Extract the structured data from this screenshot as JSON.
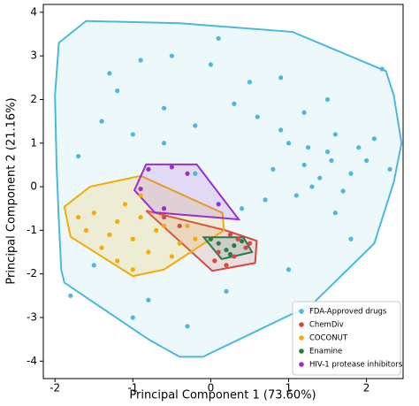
{
  "chart_data": {
    "type": "scatter",
    "xlabel": "Principal Component 1 (73.60%)",
    "ylabel": "Principal Component 2 (21.16%)",
    "xlim": [
      -2.15,
      2.47
    ],
    "ylim": [
      -4.4,
      4.18
    ],
    "xticks": [
      -2,
      -1,
      0,
      1,
      2
    ],
    "yticks": [
      -4,
      -3,
      -2,
      -1,
      0,
      1,
      2,
      3,
      4
    ],
    "legend": "lower right",
    "series": [
      {
        "name": "FDA-Approved drugs",
        "color": "#4cb8dc",
        "x": [
          1.2,
          1.5,
          1.8,
          1.0,
          1.3,
          1.6,
          2.0,
          0.8,
          1.1,
          1.4,
          1.7,
          2.1,
          0.9,
          1.25,
          1.55,
          1.9,
          0.6,
          0.3,
          -0.2,
          -0.6,
          -1.0,
          -1.4,
          -1.7,
          0.5,
          0.0,
          -0.5,
          -1.2,
          0.9,
          1.5,
          2.2,
          -0.8,
          -0.3,
          0.2,
          1.0,
          1.8,
          -1.5,
          -1.8,
          -1.0,
          0.4,
          1.2,
          -0.2,
          0.7,
          -0.9,
          1.6,
          2.3,
          -1.3,
          0.1,
          -0.6
        ],
        "y": [
          0.5,
          0.8,
          0.3,
          1.0,
          0.0,
          1.2,
          0.6,
          0.4,
          -0.2,
          0.2,
          -0.1,
          1.1,
          1.3,
          0.9,
          0.6,
          0.9,
          1.6,
          1.9,
          1.4,
          1.8,
          1.2,
          1.5,
          0.7,
          2.4,
          2.8,
          3.0,
          2.2,
          2.5,
          2.0,
          2.7,
          -2.6,
          -3.2,
          -2.4,
          -1.9,
          -1.2,
          -1.8,
          -2.5,
          -3.0,
          -0.5,
          1.7,
          0.3,
          -0.3,
          2.9,
          -0.6,
          0.4,
          2.6,
          3.4,
          1.0
        ],
        "hull": {
          "x": [
            -1.6,
            -1.95,
            -2.0,
            -1.98,
            -1.95,
            -1.92,
            -1.88,
            -0.8,
            -0.4,
            -0.1,
            1.3,
            2.1,
            2.35,
            2.45,
            2.35,
            2.25,
            1.05,
            -0.4
          ],
          "y": [
            3.8,
            3.3,
            2.1,
            0.5,
            -0.8,
            -1.9,
            -2.2,
            -3.5,
            -3.9,
            -3.9,
            -2.7,
            -1.3,
            0.1,
            1.0,
            2.1,
            2.65,
            3.55,
            3.75
          ]
        }
      },
      {
        "name": "ChemDiv",
        "color": "#d9473f",
        "x": [
          0.1,
          0.3,
          0.45,
          0.2,
          0.5,
          0.05,
          0.35,
          -0.4,
          -0.6,
          0.25
        ],
        "y": [
          -1.5,
          -1.6,
          -1.4,
          -1.8,
          -1.3,
          -1.7,
          -1.2,
          -0.9,
          -0.7,
          -1.1
        ],
        "hull": {
          "x": [
            -0.83,
            0.02,
            0.57,
            0.59,
            0.19
          ],
          "y": [
            -0.55,
            -1.93,
            -1.75,
            -1.24,
            -1.0
          ]
        }
      },
      {
        "name": "COCONUT",
        "color": "#f2ac0a",
        "x": [
          -1.5,
          -1.2,
          -0.9,
          -0.6,
          -1.3,
          -1.0,
          -0.7,
          -0.4,
          -1.6,
          -1.1,
          -0.8,
          -0.5,
          -0.2,
          -1.4,
          -0.9,
          -0.6,
          -1.2,
          -0.3,
          -1.7,
          -1.0
        ],
        "y": [
          -0.6,
          -0.8,
          -0.7,
          -0.9,
          -1.1,
          -1.2,
          -1.0,
          -1.3,
          -1.0,
          -0.4,
          -1.5,
          -1.6,
          -1.2,
          -1.4,
          -0.2,
          -0.5,
          -1.7,
          -0.9,
          -0.7,
          -1.9
        ],
        "hull": {
          "x": [
            -1.88,
            -1.8,
            -1.0,
            -0.6,
            0.17,
            0.15,
            -0.9,
            -1.55
          ],
          "y": [
            -0.46,
            -1.15,
            -2.05,
            -1.9,
            -1.0,
            -0.6,
            0.25,
            0.0
          ]
        }
      },
      {
        "name": "Enamine",
        "color": "#2a7a4b",
        "x": [
          0.1,
          0.2,
          0.3,
          0.4,
          0.25,
          0.0
        ],
        "y": [
          -1.3,
          -1.45,
          -1.35,
          -1.25,
          -1.55,
          -1.2
        ],
        "hull": {
          "x": [
            -0.09,
            0.42,
            0.53,
            0.14
          ],
          "y": [
            -1.16,
            -1.16,
            -1.5,
            -1.66
          ]
        }
      },
      {
        "name": "HIV-1 protease inhibitors",
        "color": "#9a2fd0",
        "x": [
          -0.8,
          -0.5,
          -0.3,
          -0.9,
          0.1,
          -0.6
        ],
        "y": [
          0.4,
          0.45,
          0.3,
          -0.05,
          -0.4,
          -0.5
        ],
        "hull": {
          "x": [
            -0.98,
            -0.83,
            -0.18,
            0.36,
            -0.72
          ],
          "y": [
            -0.08,
            0.51,
            0.51,
            -0.75,
            -0.59
          ]
        }
      }
    ]
  }
}
